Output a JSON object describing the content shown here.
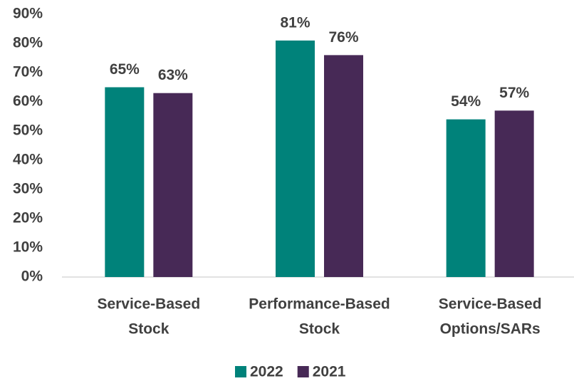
{
  "chart_data": {
    "type": "bar",
    "categories": [
      [
        "Service-Based",
        "Stock"
      ],
      [
        "Performance-Based",
        "Stock"
      ],
      [
        "Service-Based",
        "Options/SARs"
      ]
    ],
    "series": [
      {
        "name": "2022",
        "color": "#00827a",
        "values": [
          65,
          81,
          54
        ],
        "value_labels": [
          "65%",
          "81%",
          "54%"
        ]
      },
      {
        "name": "2021",
        "color": "#472956",
        "values": [
          63,
          76,
          57
        ],
        "value_labels": [
          "63%",
          "76%",
          "57%"
        ]
      }
    ],
    "ylim": [
      0,
      90
    ],
    "yticks": [
      {
        "value": 0,
        "label": "0%"
      },
      {
        "value": 10,
        "label": "10%"
      },
      {
        "value": 20,
        "label": "20%"
      },
      {
        "value": 30,
        "label": "30%"
      },
      {
        "value": 40,
        "label": "40%"
      },
      {
        "value": 50,
        "label": "50%"
      },
      {
        "value": 60,
        "label": "60%"
      },
      {
        "value": 70,
        "label": "70%"
      },
      {
        "value": 80,
        "label": "80%"
      },
      {
        "value": 90,
        "label": "90%"
      }
    ],
    "grid": false,
    "legend": "bottom"
  }
}
